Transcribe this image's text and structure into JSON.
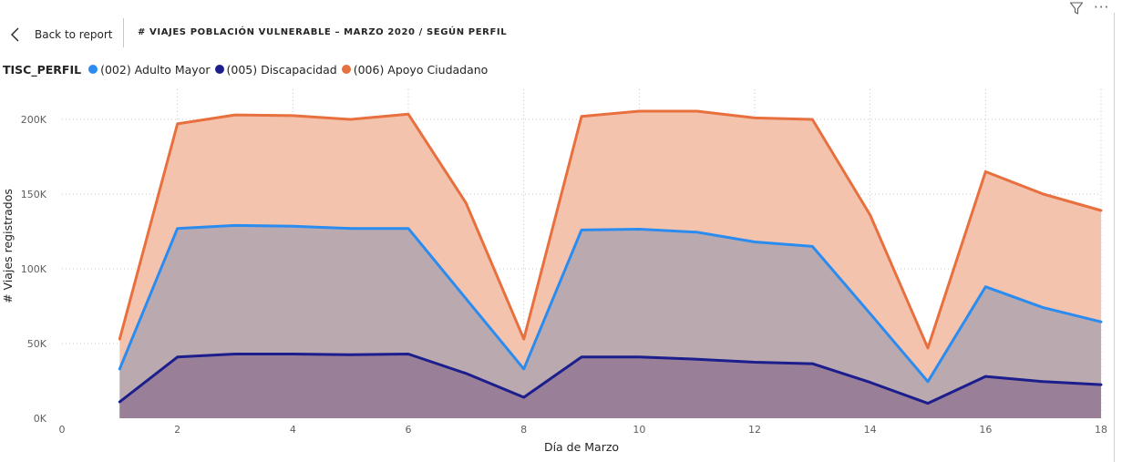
{
  "header": {
    "back_label": "Back to report",
    "title": "# VIAJES POBLACIÓN VULNERABLE – MARZO 2020 / SEGÚN PERFIL"
  },
  "icons": {
    "back": "chevron-left-icon",
    "filter": "filter-icon",
    "more": "more-options-icon"
  },
  "legend": {
    "title": "TISC_PERFIL",
    "items": [
      {
        "label": "(002) Adulto Mayor",
        "color": "#2b8cf0"
      },
      {
        "label": "(005) Discapacidad",
        "color": "#1b1e8c"
      },
      {
        "label": "(006) Apoyo Ciudadano",
        "color": "#e8703e"
      }
    ]
  },
  "chart_data": {
    "type": "area",
    "stacked": true,
    "xlabel": "Día de Marzo",
    "ylabel": "# Viajes registrados",
    "xlim": [
      0,
      18
    ],
    "ylim": [
      0,
      200000
    ],
    "x_ticks": [
      0,
      2,
      4,
      6,
      8,
      10,
      12,
      14,
      16,
      18
    ],
    "y_ticks": [
      0,
      50000,
      100000,
      150000,
      200000
    ],
    "y_tick_labels": [
      "0K",
      "50K",
      "100K",
      "150K",
      "200K"
    ],
    "grid": true,
    "x": [
      1,
      2,
      3,
      4,
      5,
      6,
      7,
      8,
      9,
      10,
      11,
      12,
      13,
      15,
      16,
      17,
      18
    ],
    "series": [
      {
        "name": "(005) Discapacidad",
        "color": "#1b1e8c",
        "fill": "#9a7f99",
        "values": [
          11000,
          41000,
          43000,
          43000,
          42500,
          43000,
          30000,
          14000,
          41000,
          41000,
          39500,
          37500,
          36500,
          10000,
          28000,
          24500,
          22500
        ]
      },
      {
        "name": "(002) Adulto Mayor",
        "color": "#2b8cf0",
        "fill": "#bba9b0",
        "values": [
          33000,
          127000,
          129000,
          128500,
          127000,
          127000,
          80000,
          33000,
          126000,
          126500,
          124500,
          118000,
          115000,
          24500,
          88000,
          74000,
          64500
        ]
      },
      {
        "name": "(006) Apoyo Ciudadano",
        "color": "#e8703e",
        "fill": "#f4c3ae",
        "values": [
          53000,
          197000,
          203000,
          202500,
          200000,
          203500,
          144000,
          53000,
          202000,
          205500,
          205500,
          201000,
          200000,
          47000,
          165000,
          150000,
          139000
        ]
      }
    ],
    "extra_points": {
      "x": 14,
      "values": [
        24000,
        70000,
        136000
      ]
    }
  }
}
